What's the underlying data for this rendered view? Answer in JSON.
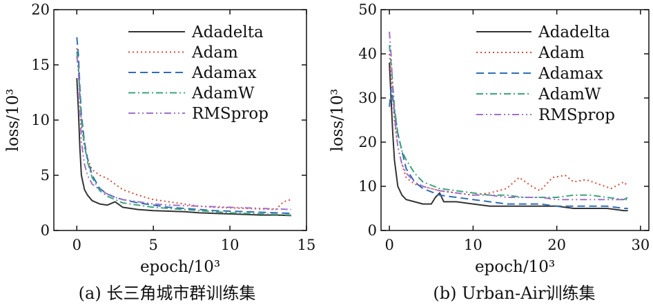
{
  "chart_data": [
    {
      "type": "line",
      "caption": "(a) 长三角城市群训练集",
      "xlabel": "epoch/10³",
      "ylabel": "loss/10³",
      "xlim": [
        -1.5,
        15
      ],
      "ylim": [
        0,
        20
      ],
      "xticks": [
        0,
        5,
        10,
        15
      ],
      "yticks": [
        0,
        5,
        10,
        15,
        20
      ],
      "legend_position": "top-right",
      "series": [
        {
          "name": "Adadelta",
          "color": "#333333",
          "dash": "solid",
          "x": [
            0.0,
            0.1,
            0.2,
            0.3,
            0.5,
            0.7,
            1.0,
            1.5,
            2.0,
            2.5,
            3.0,
            4.0,
            5.0,
            6.0,
            7.0,
            8.0,
            9.0,
            10.0,
            11.0,
            12.0,
            13.0,
            14.0
          ],
          "y": [
            13.8,
            11.0,
            7.5,
            5.0,
            3.7,
            3.2,
            2.7,
            2.4,
            2.3,
            2.6,
            2.1,
            1.9,
            1.8,
            1.75,
            1.7,
            1.6,
            1.55,
            1.5,
            1.45,
            1.4,
            1.4,
            1.35
          ]
        },
        {
          "name": "Adam",
          "color": "#d64a3a",
          "dash": "2 4",
          "x": [
            0.0,
            0.1,
            0.2,
            0.3,
            0.5,
            0.7,
            1.0,
            1.5,
            2.0,
            2.5,
            3.0,
            4.0,
            5.0,
            6.0,
            7.0,
            8.0,
            9.0,
            10.0,
            11.0,
            12.0,
            13.0,
            13.5,
            14.0
          ],
          "y": [
            16.5,
            15.0,
            12.0,
            9.5,
            7.5,
            6.5,
            5.5,
            5.0,
            4.7,
            4.2,
            3.7,
            3.2,
            2.8,
            2.6,
            2.4,
            2.2,
            2.1,
            2.05,
            2.0,
            1.95,
            1.9,
            2.6,
            2.8
          ]
        },
        {
          "name": "Adamax",
          "color": "#2f6db5",
          "dash": "11 6",
          "x": [
            0.0,
            0.1,
            0.2,
            0.3,
            0.5,
            0.7,
            1.0,
            1.5,
            2.0,
            2.5,
            3.0,
            4.0,
            5.0,
            6.0,
            7.0,
            8.0,
            9.0,
            10.0,
            11.0,
            12.0,
            13.0,
            14.0
          ],
          "y": [
            17.5,
            16.0,
            13.0,
            10.5,
            8.0,
            6.5,
            5.0,
            3.8,
            3.3,
            3.0,
            2.8,
            2.5,
            2.3,
            2.1,
            2.0,
            1.9,
            1.8,
            1.75,
            1.7,
            1.65,
            1.6,
            1.55
          ]
        },
        {
          "name": "AdamW",
          "color": "#3da37a",
          "dash": "10 4 2 4",
          "x": [
            0.0,
            0.1,
            0.2,
            0.3,
            0.5,
            0.7,
            1.0,
            1.5,
            2.0,
            2.5,
            3.0,
            4.0,
            5.0,
            6.0,
            7.0,
            8.0,
            9.0,
            10.0,
            11.0,
            12.0,
            13.0,
            14.0
          ],
          "y": [
            16.2,
            15.0,
            12.5,
            10.0,
            7.8,
            6.2,
            4.8,
            3.6,
            3.1,
            2.8,
            2.5,
            2.3,
            2.1,
            2.0,
            1.9,
            1.8,
            1.7,
            1.6,
            1.55,
            1.5,
            1.45,
            1.4
          ]
        },
        {
          "name": "RMSprop",
          "color": "#a070c8",
          "dash": "10 4 2 4 2 4",
          "x": [
            0.0,
            0.1,
            0.2,
            0.3,
            0.5,
            0.7,
            1.0,
            1.5,
            2.0,
            2.5,
            3.0,
            4.0,
            5.0,
            6.0,
            7.0,
            8.0,
            9.0,
            10.0,
            11.0,
            12.0,
            13.0,
            14.0
          ],
          "y": [
            15.8,
            14.5,
            11.5,
            8.0,
            6.0,
            5.0,
            4.2,
            3.7,
            3.3,
            3.0,
            2.8,
            2.6,
            2.4,
            2.3,
            2.25,
            2.2,
            2.15,
            2.1,
            2.05,
            2.0,
            1.95,
            1.9
          ]
        }
      ]
    },
    {
      "type": "line",
      "caption": "(b) Urban-Air训练集",
      "xlabel": "epoch/10³",
      "ylabel": "loss/10³",
      "xlim": [
        -1,
        31
      ],
      "ylim": [
        0,
        50
      ],
      "xticks": [
        0,
        10,
        20,
        30
      ],
      "yticks": [
        0,
        10,
        20,
        30,
        40,
        50
      ],
      "legend_position": "top-right",
      "series": [
        {
          "name": "Adadelta",
          "color": "#333333",
          "dash": "solid",
          "x": [
            0.0,
            0.2,
            0.4,
            0.6,
            1.0,
            1.5,
            2.0,
            3.0,
            4.0,
            5.0,
            5.5,
            6.0,
            6.5,
            8.0,
            10.0,
            12.0,
            14.0,
            16.0,
            18.0,
            20.0,
            22.0,
            24.0,
            26.0,
            28.0,
            28.5
          ],
          "y": [
            38.0,
            30.0,
            22.0,
            16.0,
            10.0,
            8.0,
            7.0,
            6.5,
            6.0,
            6.0,
            7.5,
            8.5,
            6.5,
            6.5,
            6.0,
            5.5,
            5.5,
            5.5,
            5.5,
            5.5,
            5.0,
            5.0,
            5.0,
            4.5,
            4.5
          ]
        },
        {
          "name": "Adam",
          "color": "#d64a3a",
          "dash": "2 4",
          "x": [
            0.0,
            0.2,
            0.4,
            0.6,
            1.0,
            1.5,
            2.0,
            3.0,
            4.0,
            6.0,
            8.0,
            10.0,
            12.0,
            14.0,
            15.5,
            17.0,
            18.0,
            19.5,
            21.0,
            22.0,
            23.5,
            25.0,
            26.5,
            28.0,
            28.5
          ],
          "y": [
            40.0,
            36.0,
            30.0,
            25.0,
            19.0,
            15.0,
            12.0,
            10.5,
            10.0,
            9.0,
            8.5,
            8.0,
            8.5,
            9.5,
            12.0,
            10.0,
            9.0,
            12.0,
            12.5,
            11.0,
            11.5,
            10.5,
            9.5,
            11.0,
            10.0
          ]
        },
        {
          "name": "Adamax",
          "color": "#2f6db5",
          "dash": "11 6",
          "x": [
            0.0,
            0.2,
            0.4,
            0.6,
            1.0,
            1.5,
            2.0,
            3.0,
            4.0,
            6.0,
            8.0,
            10.0,
            12.0,
            14.0,
            16.0,
            18.0,
            20.0,
            22.0,
            24.0,
            26.0,
            28.0,
            28.5
          ],
          "y": [
            28.0,
            32.0,
            30.0,
            27.0,
            22.0,
            18.0,
            14.0,
            11.0,
            9.5,
            8.0,
            7.5,
            7.0,
            6.5,
            6.0,
            6.0,
            6.0,
            5.5,
            5.5,
            5.5,
            5.5,
            5.0,
            5.0
          ]
        },
        {
          "name": "AdamW",
          "color": "#3da37a",
          "dash": "10 4 2 4",
          "x": [
            0.0,
            0.2,
            0.4,
            0.6,
            1.0,
            1.5,
            2.0,
            3.0,
            4.0,
            6.0,
            8.0,
            10.0,
            12.0,
            14.0,
            16.0,
            18.0,
            20.0,
            22.0,
            24.0,
            26.0,
            28.0,
            28.5
          ],
          "y": [
            42.0,
            38.0,
            33.0,
            28.0,
            22.0,
            18.0,
            16.0,
            13.0,
            11.0,
            9.5,
            9.0,
            8.5,
            8.0,
            8.0,
            7.5,
            7.5,
            7.5,
            8.0,
            8.0,
            7.5,
            7.0,
            7.5
          ]
        },
        {
          "name": "RMSprop",
          "color": "#a070c8",
          "dash": "10 4 2 4 2 4",
          "x": [
            0.0,
            0.2,
            0.4,
            0.6,
            1.0,
            1.5,
            2.0,
            3.0,
            4.0,
            6.0,
            8.0,
            10.0,
            12.0,
            14.0,
            16.0,
            18.0,
            20.0,
            22.0,
            24.0,
            26.0,
            28.0,
            28.5
          ],
          "y": [
            45.0,
            40.0,
            32.0,
            26.0,
            19.0,
            15.0,
            13.0,
            11.0,
            10.0,
            9.0,
            8.5,
            8.0,
            8.0,
            7.5,
            7.5,
            7.5,
            7.0,
            7.0,
            7.0,
            7.0,
            7.0,
            7.0
          ]
        }
      ]
    }
  ]
}
